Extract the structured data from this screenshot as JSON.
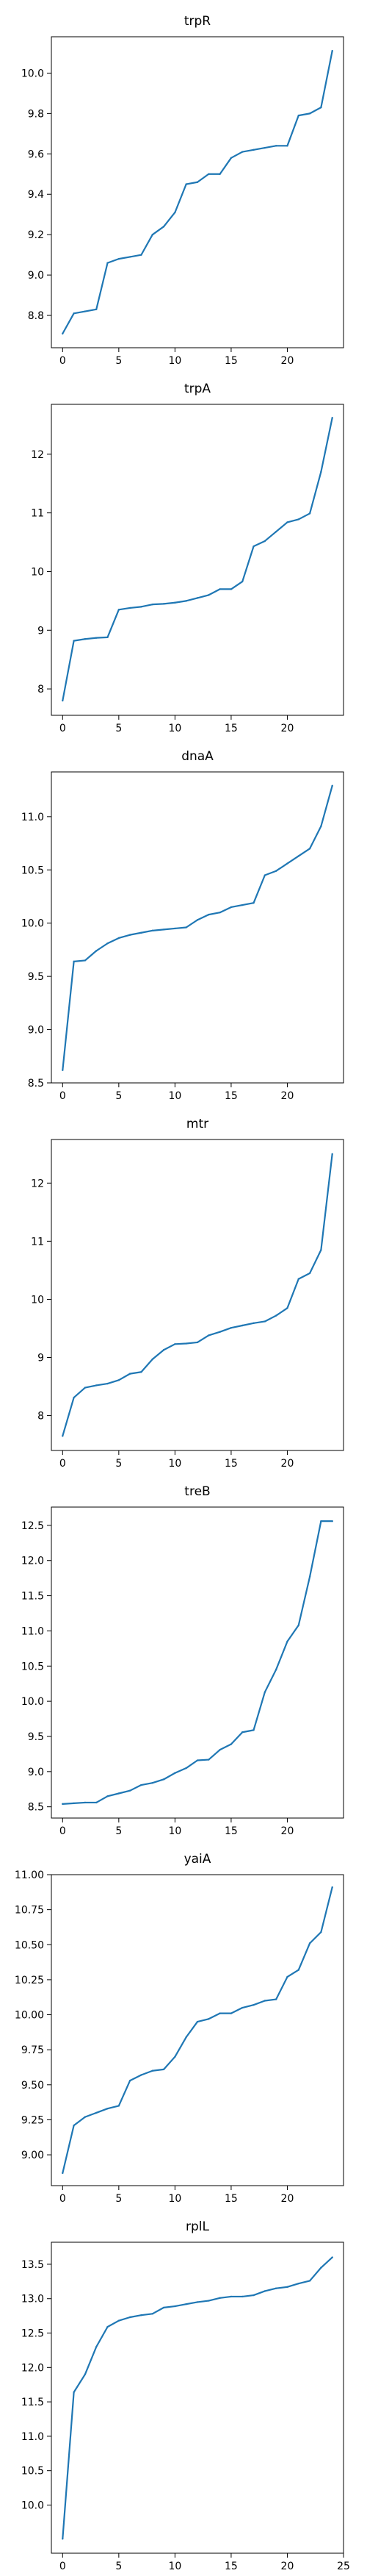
{
  "chart_data": [
    {
      "type": "line",
      "title": "trpR",
      "color": "#1f77b4",
      "x": [
        0,
        1,
        2,
        3,
        4,
        5,
        6,
        7,
        8,
        9,
        10,
        11,
        12,
        13,
        14,
        15,
        16,
        17,
        18,
        19,
        20,
        21,
        22,
        23,
        24
      ],
      "values": [
        8.71,
        8.81,
        8.82,
        8.83,
        9.06,
        9.08,
        9.09,
        9.1,
        9.2,
        9.24,
        9.31,
        9.45,
        9.46,
        9.5,
        9.5,
        9.58,
        9.61,
        9.62,
        9.63,
        9.64,
        9.64,
        9.79,
        9.8,
        9.83,
        10.11
      ],
      "xlim": [
        -1,
        25
      ],
      "ylim": [
        8.64,
        10.18
      ],
      "xticks": [
        0,
        5,
        10,
        15,
        20
      ],
      "yticks": [
        8.8,
        9.0,
        9.2,
        9.4,
        9.6,
        9.8,
        10.0
      ],
      "ytick_labels": [
        "8.8",
        "9.0",
        "9.2",
        "9.4",
        "9.6",
        "9.8",
        "10.0"
      ],
      "grid": false
    },
    {
      "type": "line",
      "title": "trpA",
      "color": "#1f77b4",
      "x": [
        0,
        1,
        2,
        3,
        4,
        5,
        6,
        7,
        8,
        9,
        10,
        11,
        12,
        13,
        14,
        15,
        16,
        17,
        18,
        19,
        20,
        21,
        22,
        23,
        24
      ],
      "values": [
        7.8,
        8.82,
        8.85,
        8.87,
        8.88,
        9.35,
        9.38,
        9.4,
        9.44,
        9.45,
        9.47,
        9.5,
        9.55,
        9.6,
        9.7,
        9.7,
        9.83,
        10.43,
        10.52,
        10.68,
        10.84,
        10.89,
        10.99,
        11.7,
        12.62
      ],
      "xlim": [
        -1,
        25
      ],
      "ylim": [
        7.55,
        12.85
      ],
      "xticks": [
        0,
        5,
        10,
        15,
        20
      ],
      "yticks": [
        8,
        9,
        10,
        11,
        12
      ],
      "ytick_labels": [
        "8",
        "9",
        "10",
        "11",
        "12"
      ],
      "grid": false
    },
    {
      "type": "line",
      "title": "dnaA",
      "color": "#1f77b4",
      "x": [
        0,
        1,
        2,
        3,
        4,
        5,
        6,
        7,
        8,
        9,
        10,
        11,
        12,
        13,
        14,
        15,
        16,
        17,
        18,
        19,
        20,
        21,
        22,
        23,
        24
      ],
      "values": [
        8.62,
        9.64,
        9.65,
        9.74,
        9.81,
        9.86,
        9.89,
        9.91,
        9.93,
        9.94,
        9.95,
        9.96,
        10.03,
        10.08,
        10.1,
        10.15,
        10.17,
        10.19,
        10.45,
        10.49,
        10.56,
        10.63,
        10.7,
        10.91,
        11.29
      ],
      "xlim": [
        -1,
        25
      ],
      "ylim": [
        8.5,
        11.42
      ],
      "xticks": [
        0,
        5,
        10,
        15,
        20
      ],
      "yticks": [
        8.5,
        9.0,
        9.5,
        10.0,
        10.5,
        11.0
      ],
      "ytick_labels": [
        "8.5",
        "9.0",
        "9.5",
        "10.0",
        "10.5",
        "11.0"
      ],
      "grid": false
    },
    {
      "type": "line",
      "title": "mtr",
      "color": "#1f77b4",
      "x": [
        0,
        1,
        2,
        3,
        4,
        5,
        6,
        7,
        8,
        9,
        10,
        11,
        12,
        13,
        14,
        15,
        16,
        17,
        18,
        19,
        20,
        21,
        22,
        23,
        24
      ],
      "values": [
        7.65,
        8.31,
        8.48,
        8.52,
        8.55,
        8.61,
        8.72,
        8.75,
        8.97,
        9.13,
        9.23,
        9.24,
        9.26,
        9.38,
        9.44,
        9.51,
        9.55,
        9.59,
        9.62,
        9.72,
        9.85,
        10.35,
        10.45,
        10.85,
        12.5
      ],
      "xlim": [
        -1,
        25
      ],
      "ylim": [
        7.4,
        12.75
      ],
      "xticks": [
        0,
        5,
        10,
        15,
        20
      ],
      "yticks": [
        8,
        9,
        10,
        11,
        12
      ],
      "ytick_labels": [
        "8",
        "9",
        "10",
        "11",
        "12"
      ],
      "grid": false
    },
    {
      "type": "line",
      "title": "treB",
      "color": "#1f77b4",
      "x": [
        0,
        1,
        2,
        3,
        4,
        5,
        6,
        7,
        8,
        9,
        10,
        11,
        12,
        13,
        14,
        15,
        16,
        17,
        18,
        19,
        20,
        21,
        22,
        23,
        24
      ],
      "values": [
        8.54,
        8.55,
        8.56,
        8.56,
        8.65,
        8.69,
        8.73,
        8.81,
        8.84,
        8.89,
        8.98,
        9.05,
        9.16,
        9.17,
        9.31,
        9.39,
        9.56,
        9.59,
        10.13,
        10.45,
        10.85,
        11.08,
        11.77,
        12.56,
        12.56
      ],
      "xlim": [
        -1,
        25
      ],
      "ylim": [
        8.34,
        12.76
      ],
      "xticks": [
        0,
        5,
        10,
        15,
        20
      ],
      "yticks": [
        8.5,
        9.0,
        9.5,
        10.0,
        10.5,
        11.0,
        11.5,
        12.0,
        12.5
      ],
      "ytick_labels": [
        "8.5",
        "9.0",
        "9.5",
        "10.0",
        "10.5",
        "11.0",
        "11.5",
        "12.0",
        "12.5"
      ],
      "grid": false
    },
    {
      "type": "line",
      "title": "yaiA",
      "color": "#1f77b4",
      "x": [
        0,
        1,
        2,
        3,
        4,
        5,
        6,
        7,
        8,
        9,
        10,
        11,
        12,
        13,
        14,
        15,
        16,
        17,
        18,
        19,
        20,
        21,
        22,
        23,
        24
      ],
      "values": [
        8.87,
        9.21,
        9.27,
        9.3,
        9.33,
        9.35,
        9.53,
        9.57,
        9.6,
        9.61,
        9.7,
        9.84,
        9.95,
        9.97,
        10.01,
        10.01,
        10.05,
        10.07,
        10.1,
        10.11,
        10.27,
        10.32,
        10.51,
        10.59,
        10.91
      ],
      "xlim": [
        -1,
        25
      ],
      "ylim": [
        8.78,
        11.0
      ],
      "xticks": [
        0,
        5,
        10,
        15,
        20
      ],
      "yticks": [
        9.0,
        9.25,
        9.5,
        9.75,
        10.0,
        10.25,
        10.5,
        10.75,
        11.0
      ],
      "ytick_labels": [
        "9.00",
        "9.25",
        "9.50",
        "9.75",
        "10.00",
        "10.25",
        "10.50",
        "10.75",
        "11.00"
      ],
      "grid": false
    },
    {
      "type": "line",
      "title": "rplL",
      "color": "#1f77b4",
      "x": [
        0,
        1,
        2,
        3,
        4,
        5,
        6,
        7,
        8,
        9,
        10,
        11,
        12,
        13,
        14,
        15,
        16,
        17,
        18,
        19,
        20,
        21,
        22,
        23,
        24
      ],
      "values": [
        9.51,
        11.64,
        11.9,
        12.3,
        12.59,
        12.68,
        12.73,
        12.76,
        12.78,
        12.87,
        12.89,
        12.92,
        12.95,
        12.97,
        13.01,
        13.03,
        13.03,
        13.05,
        13.11,
        13.15,
        13.17,
        13.22,
        13.26,
        13.45,
        13.6
      ],
      "xlim": [
        -1,
        25
      ],
      "ylim": [
        9.3,
        13.82
      ],
      "xticks": [
        0,
        5,
        10,
        15,
        20,
        25
      ],
      "yticks": [
        10.0,
        10.5,
        11.0,
        11.5,
        12.0,
        12.5,
        13.0,
        13.5
      ],
      "ytick_labels": [
        "10.0",
        "10.5",
        "11.0",
        "11.5",
        "12.0",
        "12.5",
        "13.0",
        "13.5"
      ],
      "grid": false
    }
  ]
}
